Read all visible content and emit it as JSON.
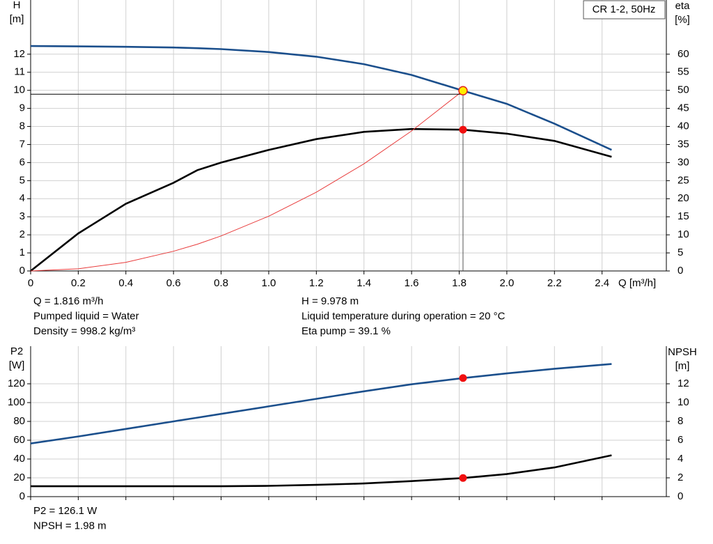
{
  "chart_data": [
    {
      "type": "line",
      "label": "CR 1-2, 50Hz",
      "y_label": "H",
      "y_unit": "[m]",
      "y2_label": "eta",
      "y2_unit": "[%]",
      "x_label": "Q [m³/h]",
      "x": [
        0,
        0.2,
        0.4,
        0.6,
        0.7,
        0.8,
        1.0,
        1.2,
        1.4,
        1.6,
        1.816,
        2.0,
        2.2,
        2.44
      ],
      "xlim": [
        0,
        2.67
      ],
      "xticks": [
        0,
        0.2,
        0.4,
        0.6,
        0.8,
        {
          "value": 1,
          "label": "1.0"
        },
        1.2,
        1.4,
        1.6,
        1.8,
        {
          "value": 2,
          "label": "2.0"
        },
        2.2,
        2.4
      ],
      "ylim": [
        0,
        15
      ],
      "yticks": [
        0,
        1,
        2,
        3,
        4,
        5,
        6,
        7,
        8,
        9,
        10,
        11,
        12
      ],
      "y2lim": [
        0,
        75
      ],
      "y2ticks": [
        0,
        5,
        10,
        15,
        20,
        25,
        30,
        35,
        40,
        45,
        50,
        55,
        60
      ],
      "grid": true,
      "series": [
        {
          "color": "#1b4f8c",
          "values": [
            12.45,
            12.43,
            12.41,
            12.37,
            12.33,
            12.28,
            12.12,
            11.86,
            11.45,
            10.85,
            9.978,
            9.25,
            8.15,
            6.7
          ]
        },
        {
          "color": "#000000",
          "axis": "y2",
          "values": [
            0,
            10.4,
            18.6,
            24.4,
            27.9,
            30.0,
            33.5,
            36.5,
            38.5,
            39.3,
            39.1,
            38.0,
            36.0,
            31.6
          ]
        },
        {
          "color": "#e83a3a",
          "values": [
            0,
            0.12,
            0.48,
            1.09,
            1.48,
            1.94,
            3.03,
            4.36,
            5.93,
            7.75,
            9.978,
            null,
            null,
            null
          ]
        }
      ],
      "notes": [
        [
          "Q = 1.816 m³/h",
          "Pumped liquid = Water",
          "Density = 998.2 kg/m³"
        ],
        [
          "H = 9.978 m",
          "Liquid temperature during operation = 20 °C",
          "Eta pump = 39.1 %"
        ]
      ]
    },
    {
      "type": "line",
      "y_label": "P2",
      "y_unit": "[W]",
      "y2_label": "NPSH",
      "y2_unit": "[m]",
      "x": [
        0,
        0.2,
        0.4,
        0.6,
        0.7,
        0.8,
        1.0,
        1.2,
        1.4,
        1.6,
        1.816,
        2.0,
        2.2,
        2.44
      ],
      "xlim": [
        0,
        2.67
      ],
      "ylim": [
        0,
        160
      ],
      "yticks": [
        0,
        20,
        40,
        60,
        80,
        100,
        120
      ],
      "y2lim": [
        0,
        16
      ],
      "y2ticks": [
        0,
        2,
        4,
        6,
        8,
        10,
        12
      ],
      "grid": true,
      "series": [
        {
          "color": "#1b4f8c",
          "values": [
            56.5,
            64,
            72,
            80,
            84,
            88,
            96,
            104,
            112,
            119.5,
            126.1,
            131,
            136,
            141
          ]
        },
        {
          "color": "#000000",
          "axis": "y2",
          "values": [
            1.1,
            1.1,
            1.1,
            1.1,
            1.1,
            1.1,
            1.15,
            1.25,
            1.4,
            1.65,
            1.98,
            2.4,
            3.1,
            4.4
          ]
        }
      ],
      "notes": [
        [
          "P2 = 126.1 W",
          "NPSH = 1.98 m"
        ]
      ]
    }
  ]
}
